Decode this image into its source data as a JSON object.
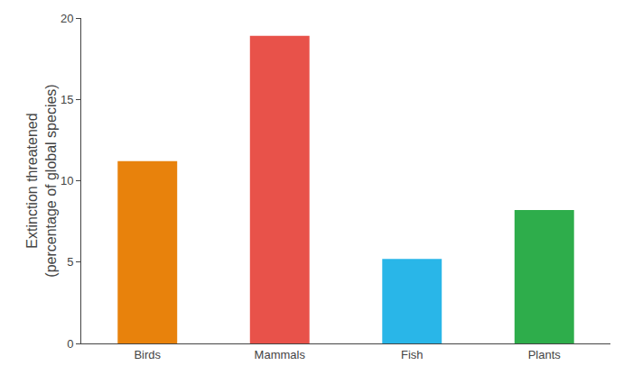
{
  "chart_data": {
    "type": "bar",
    "categories": [
      "Birds",
      "Mammals",
      "Fish",
      "Plants"
    ],
    "values": [
      11.2,
      18.9,
      5.2,
      8.2
    ],
    "colors": [
      "#E8820C",
      "#E8524A",
      "#29B6E8",
      "#2EAD4B"
    ],
    "ylabel": "Extinction threatened\n(percentage of global species)",
    "ylim": [
      0,
      20
    ],
    "yticks": [
      0,
      5,
      10,
      15,
      20
    ],
    "grid": false
  }
}
